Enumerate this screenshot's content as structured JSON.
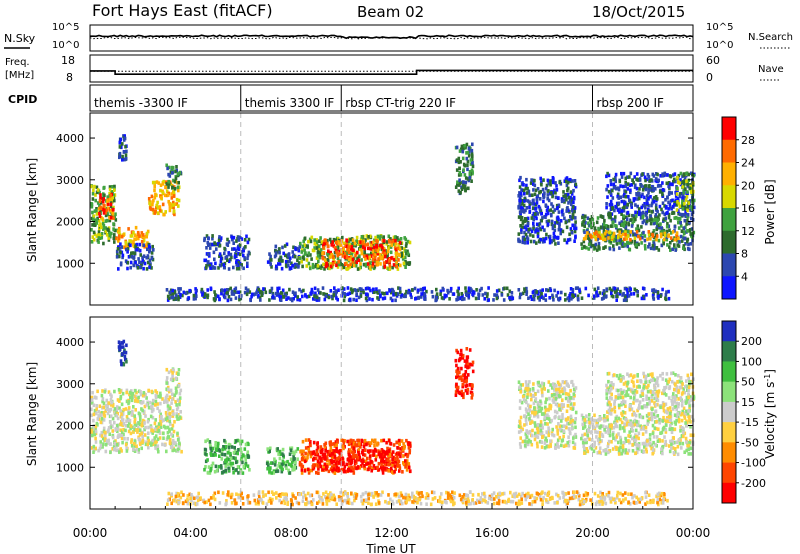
{
  "header": {
    "station": "Fort Hays East (fitACF)",
    "beam": "Beam 02",
    "date": "18/Oct/2015"
  },
  "chart_data": [
    {
      "panel": "noise",
      "type": "line",
      "left_label": "N.Sky",
      "right_label": "N.Search",
      "left_ticks": [
        "10^5",
        "10^0"
      ],
      "right_ticks": [
        "10^5",
        "10^0"
      ],
      "series": [
        {
          "name": "N.Sky",
          "style": "solid"
        },
        {
          "name": "N.Search",
          "style": "dotted"
        }
      ]
    },
    {
      "panel": "frequency",
      "type": "line",
      "left_label": [
        "Freq.",
        "[MHz]"
      ],
      "right_label": "Nave",
      "left_ticks": [
        "18",
        "8"
      ],
      "right_ticks": [
        "60",
        "0"
      ],
      "series": [
        {
          "name": "Freq.",
          "style": "solid",
          "x": [
            0,
            1.0,
            1.0,
            13.0,
            13.0,
            24
          ],
          "y": [
            11.8,
            11.8,
            10.4,
            10.4,
            12.0,
            12.0
          ]
        },
        {
          "name": "Nave",
          "style": "dotted",
          "x": [
            0,
            24
          ],
          "y": [
            22,
            22
          ]
        }
      ]
    },
    {
      "panel": "cpid",
      "label": "CPID",
      "segments": [
        {
          "start": 0,
          "end": 6,
          "label": "themis -3300 IF"
        },
        {
          "start": 6,
          "end": 10,
          "label": "themis 3300 IF"
        },
        {
          "start": 10,
          "end": 20,
          "label": "rbsp CT-trig 220 IF"
        },
        {
          "start": 20,
          "end": 24,
          "label": "rbsp 200 IF"
        }
      ]
    },
    {
      "panel": "power",
      "type": "heatmap",
      "ylabel": "Slant Range [km]",
      "yticks": [
        1000,
        2000,
        3000,
        4000
      ],
      "ylim": [
        0,
        4600
      ],
      "colorbar": {
        "label": "Power [dB]",
        "ticks": [
          "28",
          "24",
          "20",
          "16",
          "12",
          "8",
          "4"
        ],
        "colors": [
          "#ff0000",
          "#ff6a00",
          "#ffb000",
          "#d8d800",
          "#3fa23f",
          "#2d6b2d",
          "#2c47b0",
          "#0d15ff"
        ]
      },
      "regions": [
        {
          "x0": 0.0,
          "x1": 1.0,
          "y0": 1500,
          "y1": 2900,
          "level": 4
        },
        {
          "x0": 0.3,
          "x1": 0.9,
          "y0": 2100,
          "y1": 2700,
          "level": 1
        },
        {
          "x0": 1.0,
          "x1": 2.3,
          "y0": 1400,
          "y1": 1900,
          "level": 2
        },
        {
          "x0": 2.3,
          "x1": 3.5,
          "y0": 2200,
          "y1": 3000,
          "level": 2
        },
        {
          "x0": 3.0,
          "x1": 3.6,
          "y0": 2800,
          "y1": 3400,
          "level": 5
        },
        {
          "x0": 1.1,
          "x1": 1.4,
          "y0": 3500,
          "y1": 4100,
          "level": 6
        },
        {
          "x0": 1.0,
          "x1": 2.5,
          "y0": 900,
          "y1": 1500,
          "level": 6
        },
        {
          "x0": 4.5,
          "x1": 6.3,
          "y0": 900,
          "y1": 1700,
          "level": 6
        },
        {
          "x0": 7.0,
          "x1": 8.3,
          "y0": 900,
          "y1": 1500,
          "level": 6
        },
        {
          "x0": 8.3,
          "x1": 12.7,
          "y0": 900,
          "y1": 1700,
          "level": 4
        },
        {
          "x0": 9.2,
          "x1": 12.3,
          "y0": 950,
          "y1": 1600,
          "level": 1
        },
        {
          "x0": 14.5,
          "x1": 15.2,
          "y0": 2700,
          "y1": 3900,
          "level": 5
        },
        {
          "x0": 17.0,
          "x1": 19.3,
          "y0": 1500,
          "y1": 3100,
          "level": 6
        },
        {
          "x0": 19.5,
          "x1": 24.0,
          "y0": 1350,
          "y1": 2200,
          "level": 5
        },
        {
          "x0": 19.6,
          "x1": 23.4,
          "y0": 1600,
          "y1": 1800,
          "level": 2
        },
        {
          "x0": 20.5,
          "x1": 24.0,
          "y0": 2200,
          "y1": 3200,
          "level": 6
        },
        {
          "x0": 23.3,
          "x1": 24.0,
          "y0": 2300,
          "y1": 3200,
          "level": 4
        },
        {
          "x0": 3.0,
          "x1": 23.0,
          "y0": 150,
          "y1": 450,
          "level": 6
        }
      ]
    },
    {
      "panel": "velocity",
      "type": "heatmap",
      "ylabel": "Slant Range [km]",
      "xlabel": "Time UT",
      "xticks": [
        "00:00",
        "04:00",
        "08:00",
        "12:00",
        "16:00",
        "20:00",
        "00:00"
      ],
      "xlim": [
        0,
        24
      ],
      "yticks": [
        1000,
        2000,
        3000,
        4000
      ],
      "ylim": [
        0,
        4600
      ],
      "colorbar": {
        "label": "Velocity [m s^-1]",
        "ticks": [
          "200",
          "100",
          "50",
          "15",
          "-15",
          "-50",
          "-100",
          "-200"
        ],
        "colors": [
          "#1f2fbf",
          "#2e7d4a",
          "#3fbf3f",
          "#8ce27a",
          "#cccccc",
          "#ffd040",
          "#ff8c00",
          "#ff4500",
          "#ff0000"
        ]
      },
      "regions": [
        {
          "x0": 0.0,
          "x1": 3.6,
          "y0": 1400,
          "y1": 2900,
          "level": 4
        },
        {
          "x0": 3.0,
          "x1": 3.5,
          "y0": 2900,
          "y1": 3400,
          "level": 4
        },
        {
          "x0": 1.1,
          "x1": 1.4,
          "y0": 3500,
          "y1": 4100,
          "level": 0
        },
        {
          "x0": 4.5,
          "x1": 6.3,
          "y0": 900,
          "y1": 1700,
          "level": 2
        },
        {
          "x0": 7.0,
          "x1": 8.3,
          "y0": 900,
          "y1": 1500,
          "level": 2
        },
        {
          "x0": 8.3,
          "x1": 12.7,
          "y0": 900,
          "y1": 1700,
          "level": 7
        },
        {
          "x0": 8.8,
          "x1": 12.3,
          "y0": 950,
          "y1": 1450,
          "level": 8
        },
        {
          "x0": 14.5,
          "x1": 15.2,
          "y0": 2700,
          "y1": 3900,
          "level": 8
        },
        {
          "x0": 17.0,
          "x1": 19.3,
          "y0": 1500,
          "y1": 3100,
          "level": 4
        },
        {
          "x0": 19.5,
          "x1": 24.0,
          "y0": 1350,
          "y1": 2300,
          "level": 4
        },
        {
          "x0": 20.5,
          "x1": 24.0,
          "y0": 2300,
          "y1": 3300,
          "level": 4
        },
        {
          "x0": 3.0,
          "x1": 23.0,
          "y0": 150,
          "y1": 450,
          "level": 5
        }
      ]
    }
  ]
}
